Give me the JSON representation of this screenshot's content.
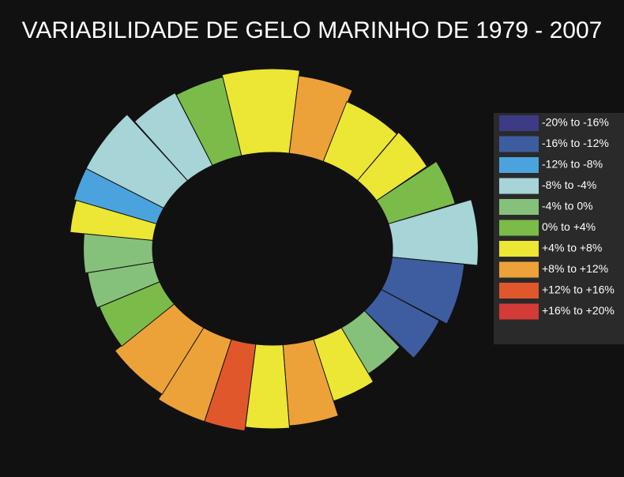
{
  "title": "VARIABILIDADE DE GELO MARINHO DE 1979 - 2007",
  "legend": [
    {
      "label": "-20% to -16%",
      "color": "#3d3a86"
    },
    {
      "label": "-16% to -12%",
      "color": "#3e5da0"
    },
    {
      "label": "-12% to -8%",
      "color": "#4aa3dc"
    },
    {
      "label": "-8% to -4%",
      "color": "#a7d4d6"
    },
    {
      "label": "-4% to 0%",
      "color": "#86c17c"
    },
    {
      "label": " 0% to +4%",
      "color": "#7bbb4a"
    },
    {
      "label": "+4% to +8%",
      "color": "#ece634"
    },
    {
      "label": "+8% to +12%",
      "color": "#eca238"
    },
    {
      "label": "+12% to +16%",
      "color": "#e0572b"
    },
    {
      "label": "+16% to +20%",
      "color": "#d43a36"
    }
  ],
  "regions": [
    "#ece634",
    "#eca238",
    "#ece634",
    "#ece634",
    "#7bbb4a",
    "#a7d4d6",
    "#3e5da0",
    "#3e5da0",
    "#86c17c",
    "#ece634",
    "#eca238",
    "#ece634",
    "#e0572b",
    "#eca238",
    "#eca238",
    "#7bbb4a",
    "#86c17c",
    "#86c17c",
    "#ece634",
    "#4aa3dc",
    "#a7d4d6",
    "#a7d4d6",
    "#7bbb4a"
  ]
}
